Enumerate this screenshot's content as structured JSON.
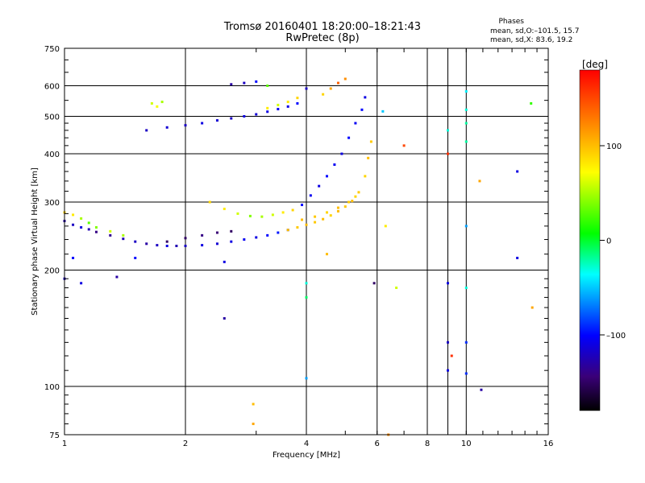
{
  "header": {
    "line1": "Tromsø 20160401 18:20:00–18:21:43",
    "line2": "RwPretec (8p)"
  },
  "stats": {
    "title": "Phases",
    "o_mode": "mean, sd,O:–101.5, 15.7",
    "x_mode": "mean, sd,X:  83.6, 19.2"
  },
  "chart_data": {
    "type": "scatter",
    "title": "Tromsø 20160401 18:20:00–18:21:43",
    "subtitle": "RwPretec (8p)",
    "xlabel": "Frequency [MHz]",
    "ylabel": "Stationary phase Virtual Height [km]",
    "x_scale": "log",
    "y_scale": "log",
    "xlim": [
      1,
      16
    ],
    "ylim": [
      75,
      750
    ],
    "x_ticks": [
      1,
      2,
      4,
      6,
      8,
      10,
      16
    ],
    "x_tick_labels": [
      "1",
      "2",
      "4",
      "6",
      "8",
      "10",
      "16"
    ],
    "y_ticks": [
      75,
      100,
      200,
      300,
      400,
      500,
      600,
      750
    ],
    "y_tick_labels": [
      "75",
      "100",
      "200",
      "300",
      "400",
      "500",
      "600",
      "750"
    ],
    "x_gridlines": [
      2,
      4,
      6,
      8,
      9,
      10
    ],
    "y_gridlines": [
      100,
      200,
      300,
      400,
      500,
      600
    ],
    "colorbar": {
      "label": "[deg]",
      "range": [
        -180,
        180
      ],
      "ticks": [
        -100,
        0,
        100
      ],
      "tick_labels": [
        "–100",
        "0",
        "100"
      ]
    },
    "series": [
      {
        "name": "",
        "points": [
          [
            1.0,
            268,
            -130
          ],
          [
            1.05,
            262,
            -120
          ],
          [
            1.1,
            258,
            -110
          ],
          [
            1.15,
            255,
            -125
          ],
          [
            1.2,
            251,
            -140
          ],
          [
            1.3,
            246,
            -135
          ],
          [
            1.4,
            241,
            -125
          ],
          [
            1.5,
            237,
            -120
          ],
          [
            1.6,
            234,
            -130
          ],
          [
            1.7,
            232,
            -120
          ],
          [
            1.8,
            231,
            -110
          ],
          [
            1.9,
            231,
            -125
          ],
          [
            2.0,
            231,
            -120
          ],
          [
            2.2,
            232,
            -110
          ],
          [
            2.4,
            234,
            -115
          ],
          [
            2.6,
            237,
            -110
          ],
          [
            2.8,
            240,
            -105
          ],
          [
            3.0,
            243,
            -110
          ],
          [
            3.2,
            246,
            -100
          ],
          [
            3.4,
            250,
            -95
          ],
          [
            3.6,
            254,
            -90
          ]
        ]
      },
      {
        "name": "",
        "points": [
          [
            1.0,
            282,
            90
          ],
          [
            1.05,
            278,
            80
          ],
          [
            1.1,
            272,
            50
          ],
          [
            1.15,
            265,
            30
          ],
          [
            1.2,
            258,
            40
          ],
          [
            1.3,
            252,
            60
          ],
          [
            1.4,
            246,
            50
          ]
        ]
      },
      {
        "name": "",
        "points": [
          [
            1.8,
            237,
            -150
          ],
          [
            2.0,
            242,
            -150
          ],
          [
            2.2,
            246,
            -140
          ],
          [
            2.4,
            250,
            -145
          ],
          [
            2.6,
            252,
            -150
          ]
        ]
      },
      {
        "name": "",
        "points": [
          [
            3.6,
            254,
            100
          ],
          [
            3.8,
            258,
            95
          ],
          [
            4.0,
            262,
            100
          ],
          [
            4.2,
            266,
            95
          ],
          [
            4.4,
            271,
            100
          ],
          [
            4.6,
            277,
            90
          ],
          [
            4.8,
            284,
            100
          ],
          [
            5.0,
            292,
            95
          ],
          [
            5.2,
            302,
            100
          ],
          [
            5.4,
            318,
            95
          ],
          [
            5.6,
            350,
            90
          ],
          [
            5.7,
            390,
            100
          ],
          [
            5.8,
            430,
            95
          ]
        ]
      },
      {
        "name": "",
        "points": [
          [
            3.9,
            270,
            100
          ],
          [
            4.2,
            275,
            95
          ],
          [
            4.5,
            282,
            90
          ],
          [
            4.8,
            290,
            100
          ],
          [
            5.1,
            300,
            95
          ],
          [
            5.3,
            310,
            90
          ]
        ]
      },
      {
        "name": "",
        "points": [
          [
            3.9,
            295,
            -100
          ],
          [
            4.1,
            312,
            -105
          ],
          [
            4.3,
            330,
            -110
          ],
          [
            4.5,
            350,
            -100
          ],
          [
            4.7,
            375,
            -105
          ],
          [
            4.9,
            400,
            -110
          ],
          [
            5.1,
            440,
            -100
          ],
          [
            5.3,
            480,
            -105
          ],
          [
            5.5,
            520,
            -100
          ],
          [
            5.6,
            560,
            -110
          ]
        ]
      },
      {
        "name": "",
        "points": [
          [
            2.3,
            300,
            90
          ],
          [
            2.5,
            288,
            80
          ],
          [
            2.7,
            280,
            60
          ],
          [
            2.9,
            276,
            40
          ],
          [
            3.1,
            275,
            50
          ],
          [
            3.3,
            278,
            60
          ],
          [
            3.5,
            282,
            80
          ],
          [
            3.7,
            286,
            90
          ]
        ]
      },
      {
        "name": "",
        "points": [
          [
            1.6,
            460,
            -120
          ],
          [
            1.8,
            468,
            -115
          ],
          [
            2.0,
            474,
            -120
          ],
          [
            2.2,
            480,
            -110
          ],
          [
            2.4,
            488,
            -115
          ],
          [
            2.6,
            494,
            -120
          ],
          [
            2.8,
            500,
            -110
          ],
          [
            3.0,
            506,
            -115
          ],
          [
            3.2,
            514,
            -110
          ],
          [
            3.4,
            522,
            -105
          ],
          [
            3.6,
            530,
            -110
          ],
          [
            3.8,
            540,
            -100
          ],
          [
            4.0,
            590,
            -120
          ]
        ]
      },
      {
        "name": "",
        "points": [
          [
            3.2,
            525,
            80
          ],
          [
            3.4,
            535,
            60
          ],
          [
            3.6,
            545,
            80
          ],
          [
            3.8,
            558,
            90
          ]
        ]
      },
      {
        "name": "",
        "points": [
          [
            4.4,
            570,
            90
          ],
          [
            4.6,
            590,
            110
          ],
          [
            4.8,
            610,
            140
          ],
          [
            5.0,
            625,
            120
          ]
        ]
      },
      {
        "name": "",
        "points": [
          [
            2.6,
            605,
            -130
          ],
          [
            2.8,
            610,
            -120
          ],
          [
            3.0,
            615,
            -100
          ],
          [
            3.2,
            600,
            30
          ]
        ]
      },
      {
        "name": "",
        "points": [
          [
            1.65,
            540,
            60
          ],
          [
            1.7,
            530,
            70
          ],
          [
            1.75,
            545,
            50
          ]
        ]
      },
      {
        "name": "",
        "points": [
          [
            1.0,
            190,
            -120
          ],
          [
            1.05,
            215,
            -100
          ],
          [
            1.1,
            185,
            -110
          ],
          [
            1.35,
            192,
            -130
          ],
          [
            1.5,
            215,
            -100
          ],
          [
            2.5,
            210,
            -110
          ],
          [
            2.5,
            150,
            -130
          ],
          [
            2.95,
            90,
            100
          ],
          [
            2.95,
            80,
            110
          ],
          [
            4.0,
            185,
            -30
          ],
          [
            4.0,
            170,
            -10
          ],
          [
            4.0,
            105,
            -60
          ],
          [
            4.5,
            220,
            100
          ],
          [
            5.9,
            185,
            -150
          ],
          [
            6.3,
            260,
            80
          ],
          [
            6.4,
            75,
            120
          ],
          [
            6.7,
            180,
            60
          ],
          [
            7.0,
            420,
            150
          ],
          [
            6.2,
            515,
            -50
          ],
          [
            9.0,
            185,
            -110
          ],
          [
            9.0,
            130,
            -120
          ],
          [
            9.0,
            110,
            -110
          ],
          [
            9.2,
            120,
            160
          ],
          [
            9.0,
            460,
            -30
          ],
          [
            9.0,
            400,
            160
          ],
          [
            10.0,
            580,
            -40
          ],
          [
            10.0,
            520,
            -30
          ],
          [
            10.0,
            480,
            -20
          ],
          [
            10.0,
            430,
            -20
          ],
          [
            10.0,
            260,
            -60
          ],
          [
            10.0,
            180,
            -30
          ],
          [
            10.0,
            130,
            -90
          ],
          [
            10.0,
            108,
            -90
          ],
          [
            10.8,
            340,
            110
          ],
          [
            10.9,
            98,
            -130
          ],
          [
            13.4,
            360,
            -110
          ],
          [
            13.4,
            215,
            -110
          ],
          [
            14.5,
            540,
            20
          ],
          [
            14.6,
            160,
            110
          ]
        ]
      }
    ]
  }
}
